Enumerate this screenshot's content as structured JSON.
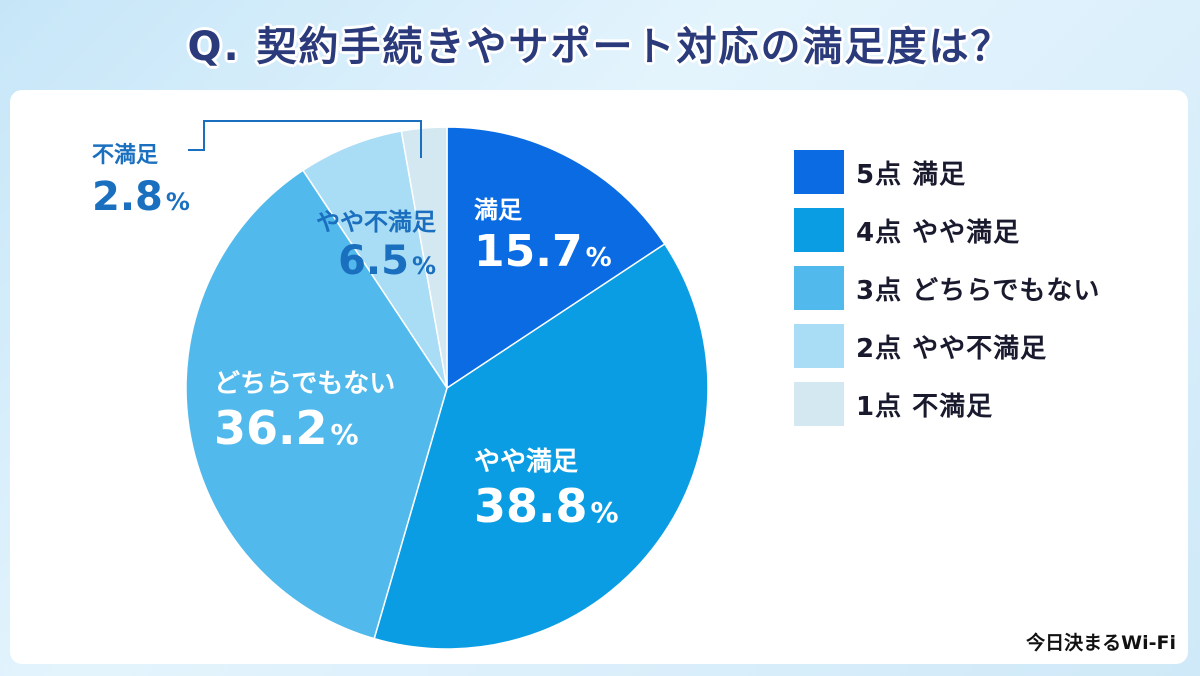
{
  "title": "Q. 契約手続きやサポート対応の満足度は？",
  "credit": "今日決まるWi-Fi",
  "colors": {
    "satisfied": "#0a6be3",
    "somewhat_satisfied": "#0a9de3",
    "neutral": "#52b9ec",
    "somewhat_dissatisfied": "#a9dcf5",
    "dissatisfied": "#d4e8f2",
    "callout": "#1a6fbf"
  },
  "chart_data": {
    "type": "pie",
    "title": "Q. 契約手続きやサポート対応の満足度は？",
    "start": "12 o'clock",
    "direction": "clockwise",
    "slices": [
      {
        "label": "満足",
        "legend": "5点 満足",
        "score": "5点",
        "name": "満足",
        "value": 15.7,
        "value_text": "15.7",
        "unit": "%"
      },
      {
        "label": "やや満足",
        "legend": "4点 やや満足",
        "score": "4点",
        "name": "やや満足",
        "value": 38.8,
        "value_text": "38.8",
        "unit": "%"
      },
      {
        "label": "どちらでもない",
        "legend": "3点 どちらでもない",
        "score": "3点",
        "name": "どちらでもない",
        "value": 36.2,
        "value_text": "36.2",
        "unit": "%"
      },
      {
        "label": "やや不満足",
        "legend": "2点 やや不満足",
        "score": "2点",
        "name": "やや不満足",
        "value": 6.5,
        "value_text": "6.5",
        "unit": "%"
      },
      {
        "label": "不満足",
        "legend": "1点 不満足",
        "score": "1点",
        "name": "不満足",
        "value": 2.8,
        "value_text": "2.8",
        "unit": "%"
      }
    ]
  }
}
